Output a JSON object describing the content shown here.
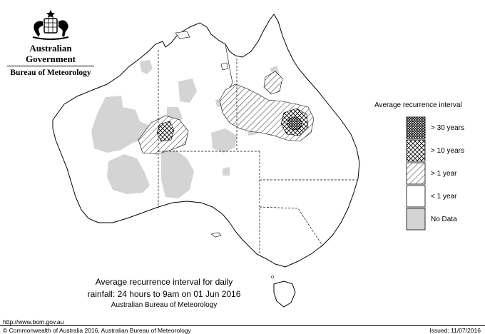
{
  "header": {
    "government": "Australian Government",
    "bureau": "Bureau of Meteorology"
  },
  "legend": {
    "title": "Average recurrence interval",
    "items": [
      {
        "label": "> 30 years",
        "pattern": "dense-crosshatch"
      },
      {
        "label": "> 10 years",
        "pattern": "crosshatch"
      },
      {
        "label": "> 1 year",
        "pattern": "hatch"
      },
      {
        "label": "< 1 year",
        "pattern": "blank"
      },
      {
        "label": "No Data",
        "pattern": "grey",
        "color": "#d4d4d4"
      }
    ]
  },
  "caption": {
    "line1": "Average recurrence interval for daily",
    "line2": "rainfall: 24 hours to 9am on 01 Jun 2016",
    "line3": "Australian Bureau of Meteorology"
  },
  "footer": {
    "url": "http://www.bom.gov.au",
    "copyright": "© Commonwealth of Australia 2016, Australian Bureau of Meteorology",
    "issued": "Issued: 11/07/2016"
  },
  "colors": {
    "no_data": "#d4d4d4",
    "outline": "#000000"
  },
  "icons": [
    "commonwealth-coat-of-arms-icon"
  ]
}
